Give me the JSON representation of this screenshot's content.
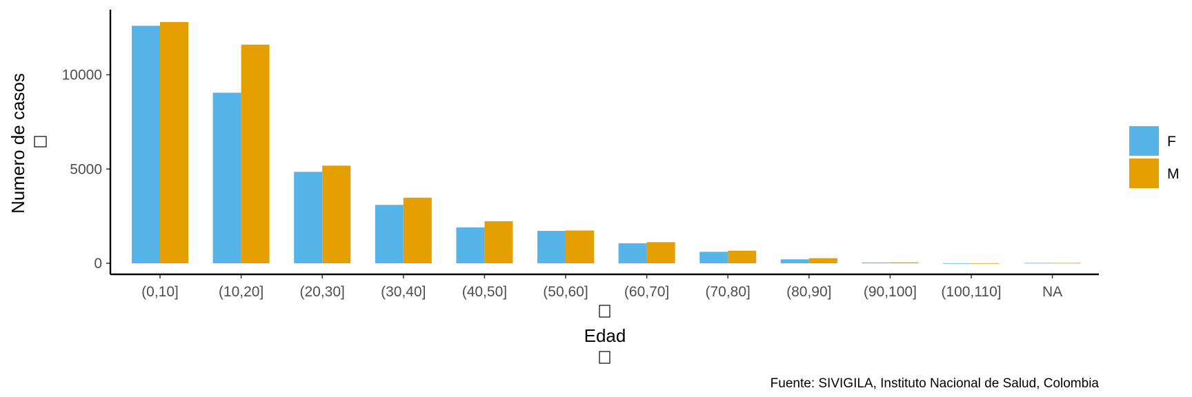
{
  "chart_data": {
    "type": "bar",
    "categories": [
      "(0,10]",
      "(10,20]",
      "(20,30]",
      "(30,40]",
      "(40,50]",
      "(50,60]",
      "(60,70]",
      "(70,80]",
      "(80,90]",
      "(90,100]",
      "(100,110]",
      "NA"
    ],
    "series": [
      {
        "name": "F",
        "color": "#56B4E9",
        "values": [
          12600,
          9050,
          4850,
          3100,
          1900,
          1720,
          1060,
          610,
          210,
          40,
          5,
          20
        ]
      },
      {
        "name": "M",
        "color": "#E69F00",
        "values": [
          12800,
          11600,
          5180,
          3480,
          2230,
          1740,
          1120,
          670,
          270,
          50,
          5,
          20
        ]
      }
    ],
    "xlabel": "Edad",
    "ylabel": "Numero de casos",
    "yticks": [
      0,
      5000,
      10000
    ],
    "ylim": [
      0,
      13500
    ],
    "grid": false,
    "legend_position": "right",
    "caption": "Fuente: SIVIGILA, Instituto Nacional de Salud, Colombia"
  }
}
